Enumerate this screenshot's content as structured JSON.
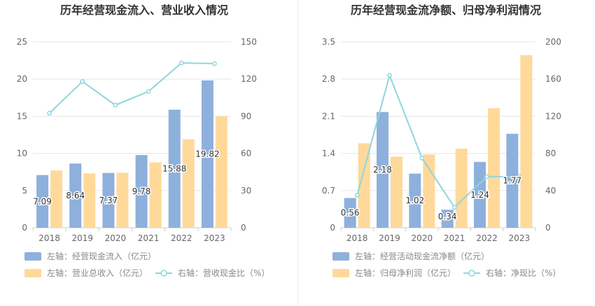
{
  "chart_data": [
    {
      "type": "bar",
      "title": "历年经营现金流入、营业收入情况",
      "categories": [
        "2018",
        "2019",
        "2020",
        "2021",
        "2022",
        "2023"
      ],
      "left_axis": {
        "min": 0,
        "max": 25,
        "ticks": [
          "0",
          "5",
          "10",
          "15",
          "20",
          "25"
        ]
      },
      "right_axis": {
        "min": 0,
        "max": 150,
        "ticks": [
          "0",
          "30",
          "60",
          "90",
          "120",
          "150"
        ]
      },
      "series": [
        {
          "name": "左轴：经营现金流入（亿元）",
          "type": "bar",
          "axis": "left",
          "color": "#8eb0dc",
          "values": [
            7.09,
            8.64,
            7.37,
            9.78,
            15.88,
            19.82
          ],
          "labels": [
            "7.09",
            "8.64",
            "7.37",
            "9.78",
            "15.88",
            "19.82"
          ]
        },
        {
          "name": "左轴：营业总收入（亿元）",
          "type": "bar",
          "axis": "left",
          "color": "#ffd99a",
          "values": [
            7.7,
            7.3,
            7.4,
            8.8,
            11.9,
            15.0
          ]
        },
        {
          "name": "右轴：营收现金比（%）",
          "type": "line",
          "axis": "right",
          "color": "#8fd6dd",
          "values": [
            92.5,
            118,
            99,
            110,
            133,
            132.5
          ]
        }
      ],
      "grid": true,
      "legend": "bottom"
    },
    {
      "type": "bar",
      "title": "历年经营现金流净额、归母净利润情况",
      "categories": [
        "2018",
        "2019",
        "2020",
        "2021",
        "2022",
        "2023"
      ],
      "left_axis": {
        "min": 0,
        "max": 3.5,
        "ticks": [
          "0",
          "0.7",
          "1.4",
          "2.1",
          "2.8",
          "3.5"
        ]
      },
      "right_axis": {
        "min": 0,
        "max": 200,
        "ticks": [
          "0",
          "40",
          "80",
          "120",
          "160",
          "200"
        ]
      },
      "series": [
        {
          "name": "左轴：经营活动现金流净额（亿元）",
          "type": "bar",
          "axis": "left",
          "color": "#8eb0dc",
          "values": [
            0.56,
            2.18,
            1.02,
            0.34,
            1.24,
            1.77
          ],
          "labels": [
            "0.56",
            "2.18",
            "1.02",
            "0.34",
            "1.24",
            "1.77"
          ]
        },
        {
          "name": "左轴：归母净利润（亿元）",
          "type": "bar",
          "axis": "left",
          "color": "#ffd99a",
          "values": [
            1.59,
            1.34,
            1.38,
            1.49,
            2.25,
            3.25
          ]
        },
        {
          "name": "右轴：净现比（%）",
          "type": "line",
          "axis": "right",
          "color": "#8fd6dd",
          "values": [
            35,
            164,
            75,
            22,
            55,
            55
          ]
        }
      ],
      "grid": true,
      "legend": "bottom"
    }
  ]
}
